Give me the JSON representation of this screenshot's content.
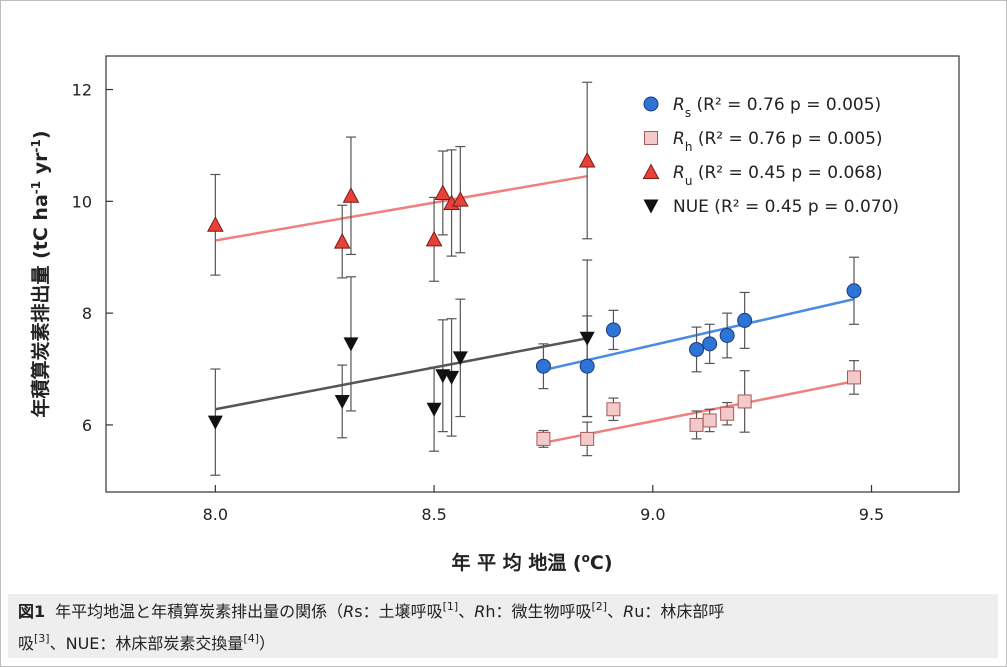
{
  "chart_data": {
    "type": "scatter",
    "xlabel": "年 平 均 地温 (°C)",
    "ylabel": "年積算炭素排出量 (tC ha-1 yr-1)",
    "xlim": [
      7.75,
      9.7
    ],
    "ylim": [
      4.8,
      12.6
    ],
    "x_ticks": [
      8.0,
      8.5,
      9.0,
      9.5
    ],
    "y_ticks": [
      6,
      8,
      10,
      12
    ],
    "grid": false,
    "legend_position": "top-right",
    "series": [
      {
        "key": "rs",
        "marker": "circle",
        "color": "#2e74d6",
        "line_color": "#4a8be8",
        "legend_main": "R",
        "legend_sub": "s",
        "legend_stat": "(R² = 0.76 p = 0.005)",
        "points": [
          {
            "x": 8.75,
            "y": 7.05,
            "err": 0.4
          },
          {
            "x": 8.85,
            "y": 7.05,
            "err": 0.9
          },
          {
            "x": 8.91,
            "y": 7.7,
            "err": 0.35
          },
          {
            "x": 9.1,
            "y": 7.35,
            "err": 0.4
          },
          {
            "x": 9.13,
            "y": 7.45,
            "err": 0.35
          },
          {
            "x": 9.17,
            "y": 7.6,
            "err": 0.4
          },
          {
            "x": 9.21,
            "y": 7.87,
            "err": 0.5
          },
          {
            "x": 9.46,
            "y": 8.4,
            "err": 0.6
          }
        ],
        "fit": [
          [
            8.75,
            6.98
          ],
          [
            9.46,
            8.25
          ]
        ]
      },
      {
        "key": "rh",
        "marker": "square",
        "color": "#f4c9c9",
        "line_color": "#f08080",
        "legend_main": "R",
        "legend_sub": "h",
        "legend_stat": "(R² = 0.76 p = 0.005)",
        "points": [
          {
            "x": 8.75,
            "y": 5.75,
            "err": 0.15
          },
          {
            "x": 8.85,
            "y": 5.75,
            "err": 0.3
          },
          {
            "x": 8.91,
            "y": 6.28,
            "err": 0.2
          },
          {
            "x": 9.1,
            "y": 6.0,
            "err": 0.25
          },
          {
            "x": 9.13,
            "y": 6.08,
            "err": 0.2
          },
          {
            "x": 9.17,
            "y": 6.2,
            "err": 0.2
          },
          {
            "x": 9.21,
            "y": 6.42,
            "err": 0.55
          },
          {
            "x": 9.46,
            "y": 6.85,
            "err": 0.3
          }
        ],
        "fit": [
          [
            8.75,
            5.68
          ],
          [
            9.46,
            6.78
          ]
        ]
      },
      {
        "key": "ru",
        "marker": "triangle-up",
        "color": "#e8413a",
        "line_color": "#f08080",
        "legend_main": "R",
        "legend_sub": "u",
        "legend_stat": "(R² = 0.45 p = 0.068)",
        "points": [
          {
            "x": 8.0,
            "y": 9.58,
            "err": 0.9
          },
          {
            "x": 8.29,
            "y": 9.28,
            "err": 0.65
          },
          {
            "x": 8.31,
            "y": 10.1,
            "err": 1.05
          },
          {
            "x": 8.5,
            "y": 9.32,
            "err": 0.75
          },
          {
            "x": 8.52,
            "y": 10.15,
            "err": 0.75
          },
          {
            "x": 8.54,
            "y": 9.97,
            "err": 0.95
          },
          {
            "x": 8.56,
            "y": 10.03,
            "err": 0.95
          },
          {
            "x": 8.85,
            "y": 10.73,
            "err": 1.4
          }
        ],
        "fit": [
          [
            8.0,
            9.3
          ],
          [
            8.85,
            10.45
          ]
        ]
      },
      {
        "key": "nue",
        "marker": "triangle-down",
        "color": "#111111",
        "line_color": "#555555",
        "legend_main": "NUE",
        "legend_sub": "",
        "legend_stat": "(R² = 0.45 p = 0.070)",
        "points": [
          {
            "x": 8.0,
            "y": 6.05,
            "err": 0.95
          },
          {
            "x": 8.29,
            "y": 6.42,
            "err": 0.65
          },
          {
            "x": 8.31,
            "y": 7.45,
            "err": 1.2
          },
          {
            "x": 8.5,
            "y": 6.28,
            "err": 0.75
          },
          {
            "x": 8.52,
            "y": 6.88,
            "err": 1.0
          },
          {
            "x": 8.54,
            "y": 6.85,
            "err": 1.05
          },
          {
            "x": 8.56,
            "y": 7.2,
            "err": 1.05
          },
          {
            "x": 8.85,
            "y": 7.55,
            "err": 1.4
          }
        ],
        "fit": [
          [
            8.0,
            6.28
          ],
          [
            8.85,
            7.55
          ]
        ]
      }
    ]
  },
  "caption": {
    "label": "図1",
    "line1_text": "年平均地温と年積算炭素排出量の関係（Rs：土壌呼吸[1]、Rh：微生物呼吸[2]、Ru：林床部呼",
    "line2_text": "吸[3]、NUE：林床部炭素交換量[4]）"
  }
}
